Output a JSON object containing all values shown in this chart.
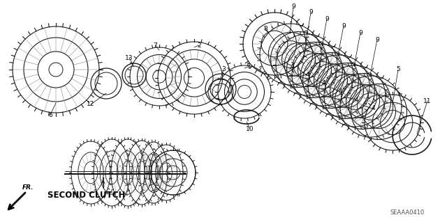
{
  "bg_color": "#ffffff",
  "fig_width": 6.4,
  "fig_height": 3.19,
  "title_text": "SECOND CLUTCH",
  "diagram_code": "SEAAA0410"
}
